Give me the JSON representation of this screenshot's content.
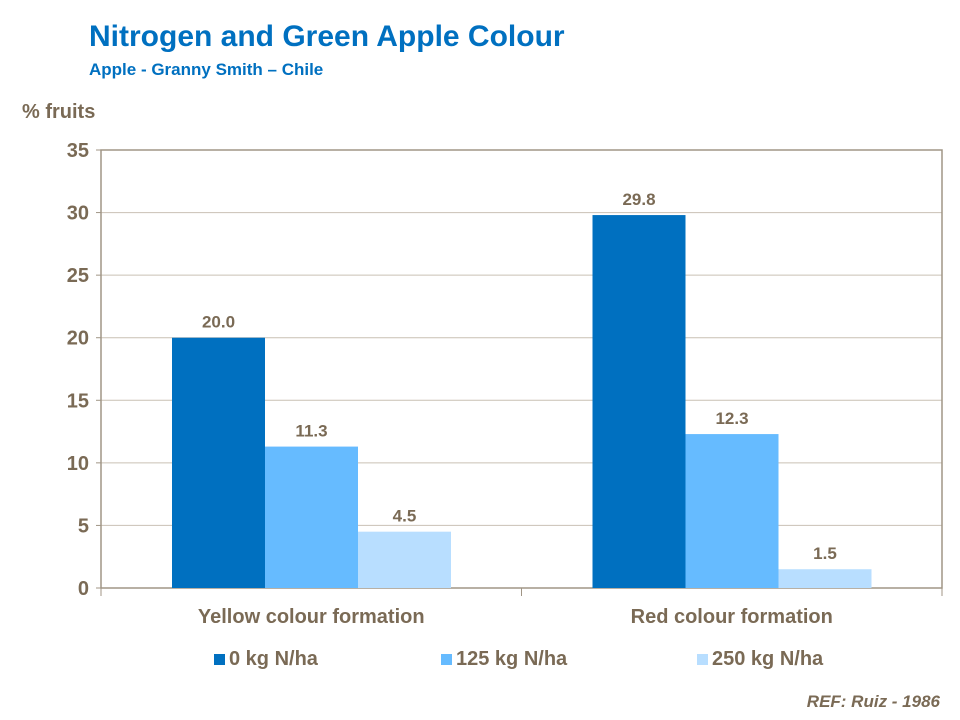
{
  "chart_data": {
    "type": "bar",
    "title": "Nitrogen and Green Apple Colour",
    "subtitle": "Apple - Granny Smith – Chile",
    "ylabel": "% fruits",
    "xlabel": "",
    "ylim": [
      0,
      35
    ],
    "yticks": [
      0,
      5,
      10,
      15,
      20,
      25,
      30,
      35
    ],
    "grid": true,
    "legend_position": "bottom",
    "categories": [
      "Yellow colour formation",
      "Red colour formation"
    ],
    "series": [
      {
        "name": "0 kg N/ha",
        "values": [
          20.0,
          29.8
        ],
        "color": "#0070C0"
      },
      {
        "name": "125 kg N/ha",
        "values": [
          11.3,
          12.3
        ],
        "color": "#66BBFF"
      },
      {
        "name": "250 kg N/ha",
        "values": [
          4.5,
          1.5
        ],
        "color": "#B8DEFF"
      }
    ],
    "data_labels": [
      [
        "20.0",
        "29.8"
      ],
      [
        "11.3",
        "12.3"
      ],
      [
        "4.5",
        "1.5"
      ]
    ]
  },
  "reference": "REF: Ruiz - 1986"
}
